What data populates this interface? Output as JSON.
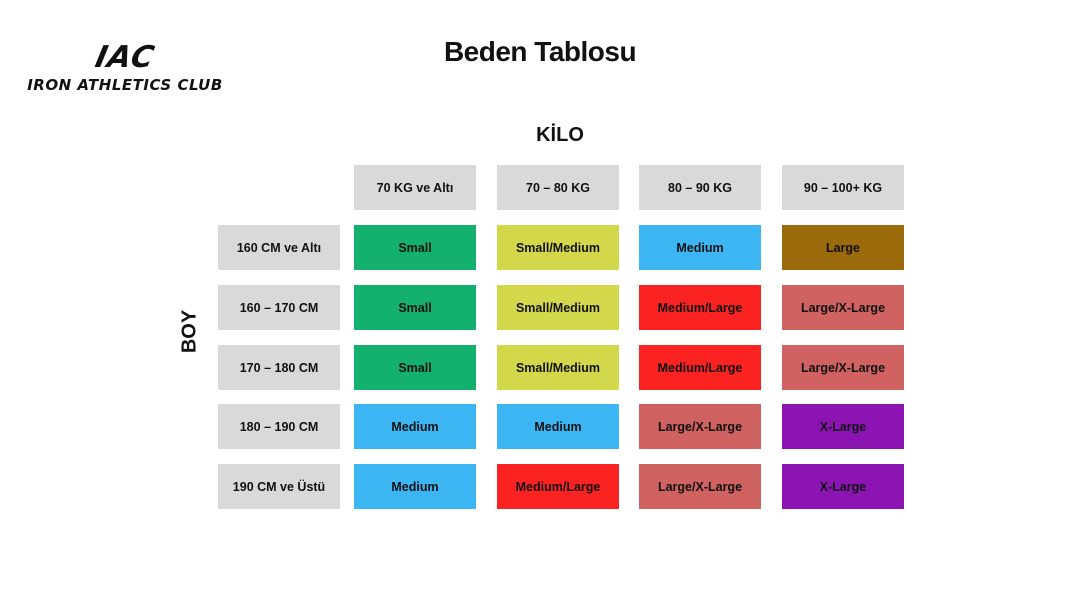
{
  "logo": {
    "mark": "IAC",
    "name": "IRON ATHLETICS CLUB"
  },
  "title": "Beden Tablosu",
  "column_axis_label": "KİLO",
  "row_axis_label": "BOY",
  "columns": [
    "70 KG ve Altı",
    "70 – 80 KG",
    "80 – 90 KG",
    "90 – 100+ KG"
  ],
  "rows": [
    {
      "label": "160 CM ve Altı",
      "sizes": [
        "Small",
        "Small/Medium",
        "Medium",
        "Large"
      ]
    },
    {
      "label": "160 – 170 CM",
      "sizes": [
        "Small",
        "Small/Medium",
        "Medium/Large",
        "Large/X-Large"
      ]
    },
    {
      "label": "170 – 180 CM",
      "sizes": [
        "Small",
        "Small/Medium",
        "Medium/Large",
        "Large/X-Large"
      ]
    },
    {
      "label": "180 – 190 CM",
      "sizes": [
        "Medium",
        "Medium",
        "Large/X-Large",
        "X-Large"
      ]
    },
    {
      "label": "190 CM ve Üstü",
      "sizes": [
        "Medium",
        "Medium/Large",
        "Large/X-Large",
        "X-Large"
      ]
    }
  ],
  "size_colors": {
    "Small": "#13b06e",
    "Small/Medium": "#d3d84a",
    "Medium": "#3cb5f3",
    "Medium/Large": "#fb2222",
    "Large": "#9b6a0a",
    "Large/X-Large": "#d06262",
    "X-Large": "#8b14b3"
  },
  "header_color": "#d9d9d9"
}
